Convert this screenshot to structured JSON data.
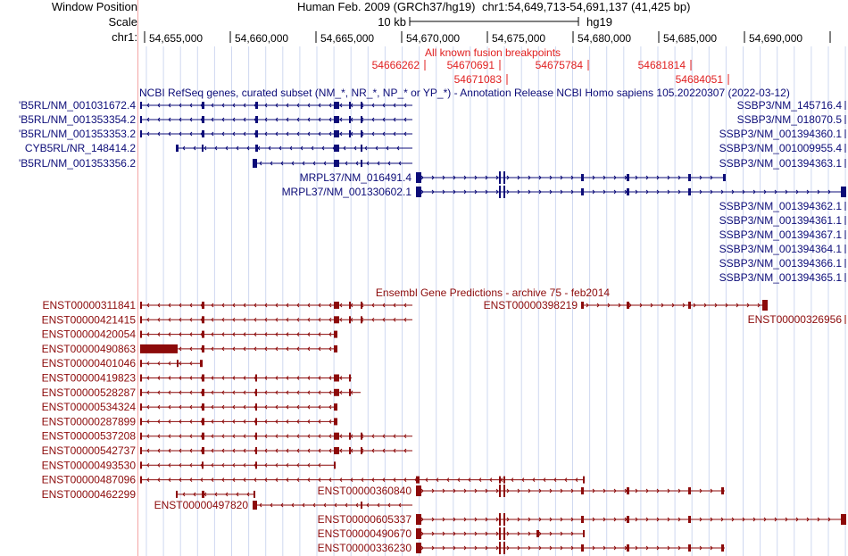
{
  "header": {
    "window_position_label": "Window Position",
    "scale_label": "Scale",
    "chrom_label": "chr1:",
    "assembly": "Human Feb. 2009 (GRCh37/hg19)",
    "position": "chr1:54,649,713-54,691,137 (41,425 bp)",
    "scale_text": "10 kb",
    "scale_db": "hg19"
  },
  "ruler": {
    "ticks": [
      "54,655,000",
      "54,660,000",
      "54,665,000",
      "54,670,000",
      "54,675,000",
      "54,680,000",
      "54,685,000",
      "54,690,000"
    ]
  },
  "fusion": {
    "title": "All known fusion breakpoints",
    "row1": [
      "54666262",
      "54670691",
      "54675784",
      "54681814"
    ],
    "row2": [
      "54671083",
      "54684051"
    ]
  },
  "refseq": {
    "title": "NCBI RefSeq genes, curated subset (NM_*, NR_*, NP_* or YP_*) - Annotation Release NCBI Homo sapiens 105.20220307 (2022-03-12)",
    "left_labels": [
      "'B5RL/NM_001031672.4",
      "'B5RL/NM_001353354.2",
      "'B5RL/NM_001353353.2",
      "CYB5RL/NR_148414.2",
      "'B5RL/NM_001353356.2"
    ],
    "right_labels": [
      "SSBP3/NM_145716.4",
      "SSBP3/NM_018070.5",
      "SSBP3/NM_001394360.1",
      "SSBP3/NM_001009955.4",
      "SSBP3/NM_001394363.1",
      "SSBP3/NM_001394362.1",
      "SSBP3/NM_001394361.1",
      "SSBP3/NM_001394367.1",
      "SSBP3/NM_001394364.1",
      "SSBP3/NM_001394366.1",
      "SSBP3/NM_001394365.1"
    ],
    "inline_labels": [
      "MRPL37/NM_016491.4",
      "MRPL37/NM_001330602.1"
    ]
  },
  "ensembl": {
    "title": "Ensembl Gene Predictions - archive 75 - feb2014",
    "left_labels": [
      "ENST00000311841",
      "ENST00000421415",
      "ENST00000420054",
      "ENST00000490863",
      "ENST00000401046",
      "ENST00000419823",
      "ENST00000528287",
      "ENST00000534324",
      "ENST00000287899",
      "ENST00000537208",
      "ENST00000542737",
      "ENST00000493530",
      "ENST00000487096",
      "ENST00000462299"
    ],
    "inline_labels": [
      "ENST00000398219",
      "ENST00000326956",
      "ENST00000360840",
      "ENST00000497820",
      "ENST00000605337",
      "ENST00000490670",
      "ENST00000336230"
    ]
  },
  "colors": {
    "refseq": "#0c0c78",
    "ensembl": "#8c0a0a",
    "fusion": "#e02020",
    "grid": "#cfd8f0",
    "ruler_edge": "#f4a6a6"
  }
}
